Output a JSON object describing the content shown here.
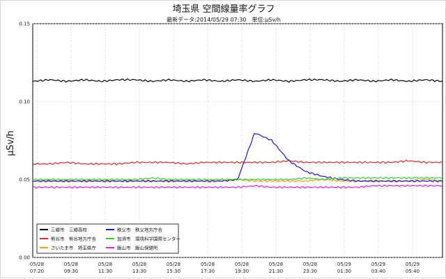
{
  "chart_data": {
    "type": "line",
    "title": "埼玉県 空間線量率グラフ",
    "subtitle": "最新データ:2014/05/29 07:30　単位:μSv/h",
    "ylabel": "μSv/h",
    "ylim": [
      0,
      0.15
    ],
    "y_ticks": [
      "0.00",
      "0.05",
      "0.10",
      "0.15"
    ],
    "x_ticks": [
      [
        "05/28",
        "07:20"
      ],
      [
        "05/28",
        "09:30"
      ],
      [
        "05/28",
        "11:30"
      ],
      [
        "05/28",
        "13:30"
      ],
      [
        "05/28",
        "15:30"
      ],
      [
        "05/28",
        "17:30"
      ],
      [
        "05/28",
        "19:30"
      ],
      [
        "05/28",
        "21:30"
      ],
      [
        "05/28",
        "23:30"
      ],
      [
        "05/29",
        "01:30"
      ],
      [
        "05/29",
        "03:40"
      ],
      [
        "05/29",
        "05:40"
      ]
    ],
    "grid": true,
    "legend_position": "bottom-left",
    "series": [
      {
        "name": "三郷市　三郷高校",
        "color": "#000000",
        "level": 0.113,
        "values": [
          0.113,
          0.114,
          0.113,
          0.114,
          0.113,
          0.114,
          0.114,
          0.113,
          0.114,
          0.113,
          0.114,
          0.113,
          0.114,
          0.113,
          0.114,
          0.113,
          0.114,
          0.114,
          0.113,
          0.114,
          0.113,
          0.114,
          0.113,
          0.114,
          0.113
        ]
      },
      {
        "name": "熊谷市　熊谷地方庁舎",
        "color": "#d42a2a",
        "level": 0.061,
        "values": [
          0.06,
          0.06,
          0.061,
          0.06,
          0.06,
          0.06,
          0.061,
          0.061,
          0.061,
          0.06,
          0.061,
          0.061,
          0.061,
          0.061,
          0.061,
          0.062,
          0.061,
          0.061,
          0.061,
          0.061,
          0.061,
          0.061,
          0.062,
          0.061,
          0.061
        ]
      },
      {
        "name": "さいたま市　埼玉県庁",
        "color": "#f0a020",
        "level": 0.049,
        "values": [
          0.049,
          0.049,
          0.049,
          0.049,
          0.049,
          0.049,
          0.049,
          0.049,
          0.049,
          0.049,
          0.049,
          0.049,
          0.05,
          0.049,
          0.049,
          0.049,
          0.049,
          0.05,
          0.049,
          0.049,
          0.049,
          0.049,
          0.049,
          0.05,
          0.049
        ]
      },
      {
        "name": "飯山市　飯山保健所",
        "color": "#e020e0",
        "level": 0.045,
        "values": [
          0.045,
          0.045,
          0.045,
          0.045,
          0.045,
          0.045,
          0.045,
          0.045,
          0.045,
          0.045,
          0.045,
          0.045,
          0.045,
          0.046,
          0.045,
          0.045,
          0.045,
          0.045,
          0.045,
          0.045,
          0.046,
          0.046,
          0.046,
          0.046,
          0.046
        ]
      },
      {
        "name": "秩父市　秩父地方庁舎",
        "color": "#1a1ac8",
        "level": 0.049,
        "values": [
          0.049,
          0.049,
          0.049,
          0.049,
          0.049,
          0.049,
          0.049,
          0.049,
          0.049,
          0.049,
          0.049,
          0.049,
          0.05,
          0.08,
          0.075,
          0.062,
          0.055,
          0.052,
          0.05,
          0.049,
          0.049,
          0.049,
          0.049,
          0.049,
          0.049
        ]
      },
      {
        "name": "加須市　環境科学国際センター",
        "color": "#30d030",
        "level": 0.05,
        "values": [
          0.05,
          0.05,
          0.05,
          0.05,
          0.05,
          0.05,
          0.05,
          0.051,
          0.05,
          0.05,
          0.05,
          0.05,
          0.05,
          0.05,
          0.05,
          0.05,
          0.051,
          0.05,
          0.051,
          0.051,
          0.051,
          0.051,
          0.051,
          0.051,
          0.051
        ]
      }
    ]
  }
}
